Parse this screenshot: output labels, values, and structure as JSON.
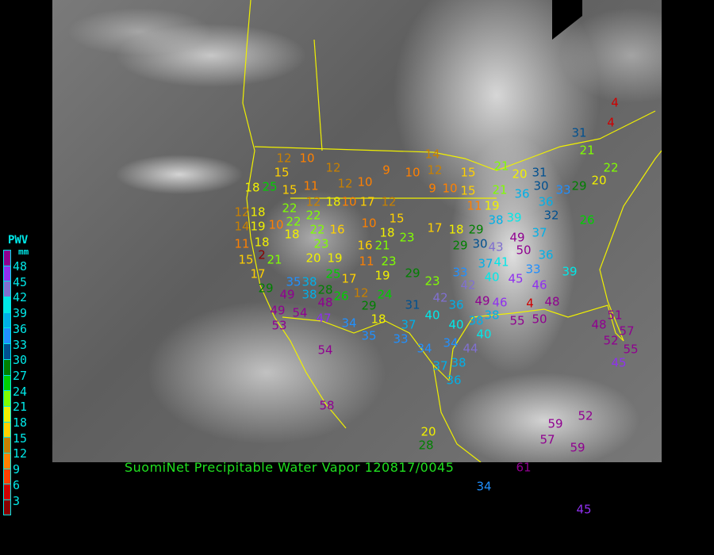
{
  "title": "SuomiNet Precipitable Water Vapor 120817/0045",
  "legend": {
    "title": "PWV",
    "unit": "mm",
    "labels": [
      "48",
      "45",
      "42",
      "39",
      "36",
      "33",
      "30",
      "27",
      "24",
      "21",
      "18",
      "15",
      "12",
      "9",
      "6",
      "3"
    ],
    "colors": [
      "#900090",
      "#9030f0",
      "#8070d0",
      "#00e8e8",
      "#00b0e8",
      "#2090ff",
      "#005090",
      "#008000",
      "#00d000",
      "#80ff00",
      "#f0f000",
      "#ffd000",
      "#c88000",
      "#ff8000",
      "#ff4000",
      "#d00000",
      "#8b0000"
    ]
  },
  "stations": [
    12,
    10,
    12,
    15,
    25,
    18,
    15,
    11,
    12,
    10,
    9,
    10,
    12,
    14,
    15,
    9,
    10,
    15,
    22,
    12,
    18,
    10,
    17,
    12,
    12,
    18,
    10,
    22,
    22,
    15,
    11,
    19,
    14,
    19,
    22,
    16,
    10,
    18,
    11,
    18,
    18,
    23,
    17,
    18,
    16,
    21,
    23,
    15,
    21,
    20,
    19,
    11,
    23,
    2,
    17,
    25,
    17,
    19,
    29,
    29,
    35,
    38,
    28,
    12,
    49,
    38,
    26,
    29,
    24,
    49,
    54,
    48,
    31,
    53,
    47,
    34,
    18,
    35,
    40,
    37,
    33,
    40,
    38,
    34,
    34,
    44,
    40,
    54,
    37,
    38,
    36,
    21,
    20,
    31,
    21,
    36,
    30,
    33,
    29,
    20,
    22,
    31,
    21,
    4,
    4,
    36,
    39,
    38,
    32,
    26,
    29,
    29,
    30,
    43,
    49,
    50,
    37,
    37,
    41,
    33,
    40,
    42,
    23,
    42,
    49,
    36,
    38,
    46,
    45,
    46,
    33,
    36,
    39,
    48,
    4,
    50,
    55,
    48,
    51,
    57,
    52,
    55,
    45,
    59,
    57,
    59,
    52,
    58,
    20,
    28,
    34,
    61,
    45
  ]
}
